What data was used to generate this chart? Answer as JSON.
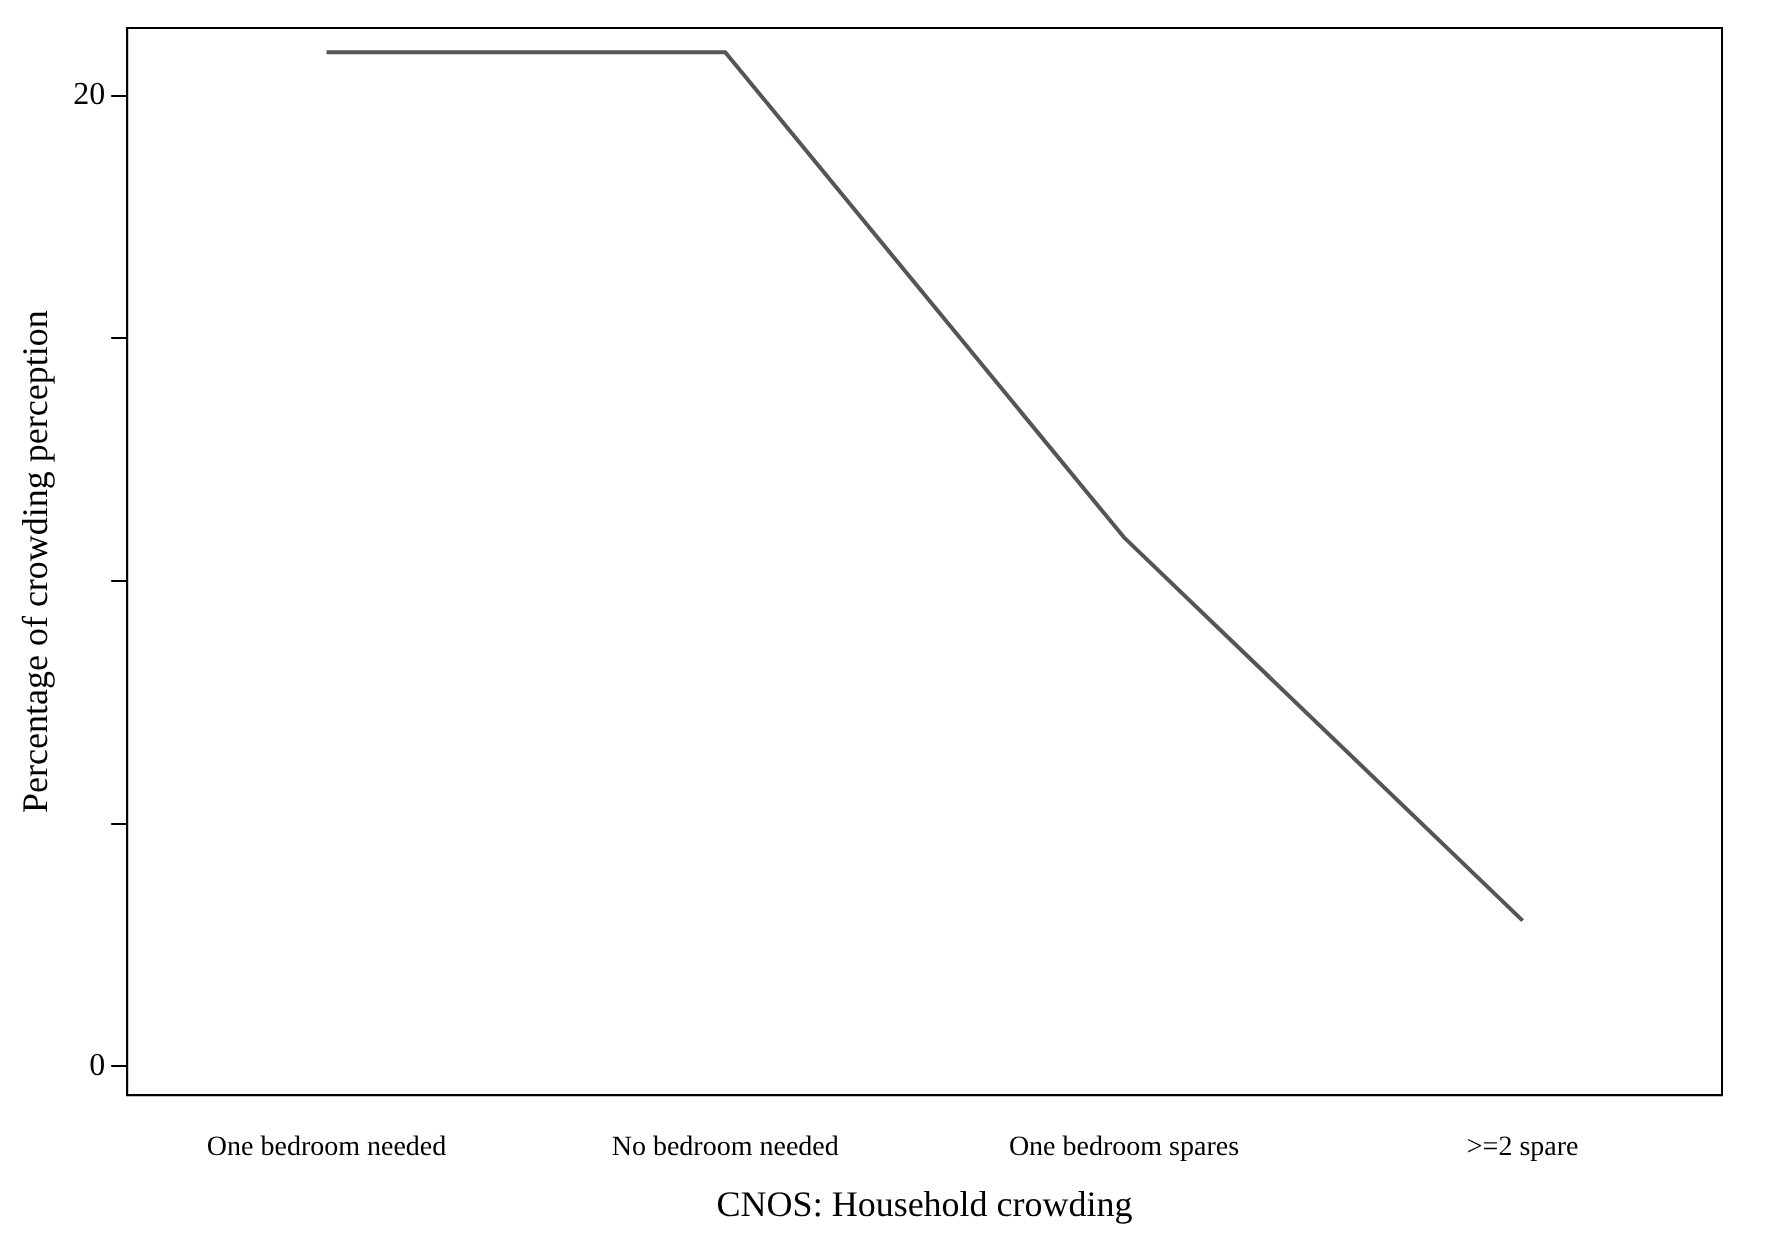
{
  "chart_data": {
    "type": "line",
    "xlabel": "CNOS: Household crowding",
    "ylabel": "Percentage of crowding perception",
    "categories": [
      "One bedroom needed",
      "No bedroom needed",
      "One bedroom spares",
      ">=2 spare"
    ],
    "series": [
      {
        "color": "#555555",
        "values": [
          20.9,
          20.9,
          10.9,
          3.0
        ]
      }
    ],
    "ylim": [
      -0.6,
      21.4
    ],
    "yticks": [
      0,
      {
        "value": 5,
        "label": null
      },
      {
        "value": 10,
        "label": null
      },
      {
        "value": 15,
        "label": null
      },
      20
    ],
    "grid": false,
    "legend": false,
    "marker": "none",
    "line_style": "solid"
  }
}
